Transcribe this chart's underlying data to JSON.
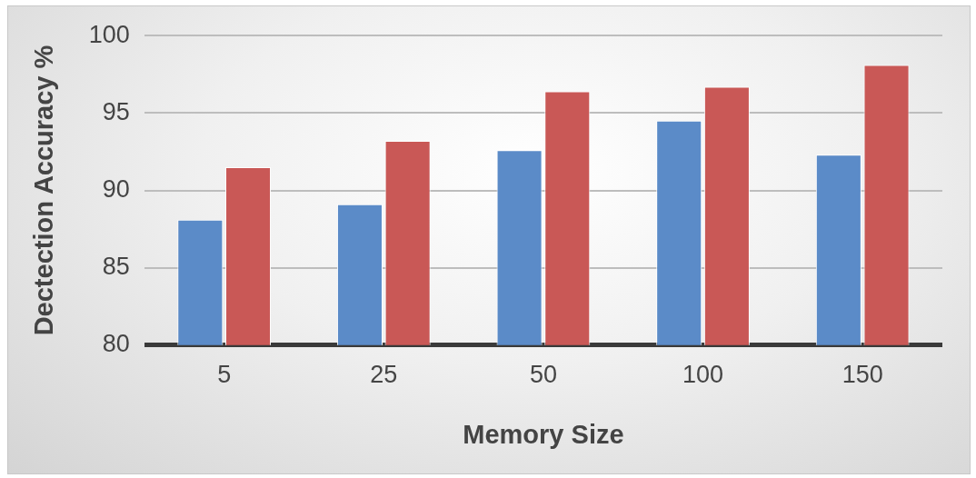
{
  "chart_data": {
    "type": "bar",
    "xlabel": "Memory Size",
    "ylabel": "Dectection Accuracy %",
    "categories": [
      "5",
      "25",
      "50",
      "100",
      "150"
    ],
    "series": [
      {
        "color": "#5b8bc8",
        "values": [
          88.1,
          89.1,
          92.6,
          94.5,
          92.3
        ]
      },
      {
        "color": "#c95856",
        "values": [
          91.5,
          93.2,
          96.4,
          96.7,
          98.1
        ]
      }
    ],
    "ylim": [
      80,
      100
    ],
    "yticks": [
      80,
      85,
      90,
      95,
      100
    ],
    "grid": "y",
    "legend": false
  }
}
